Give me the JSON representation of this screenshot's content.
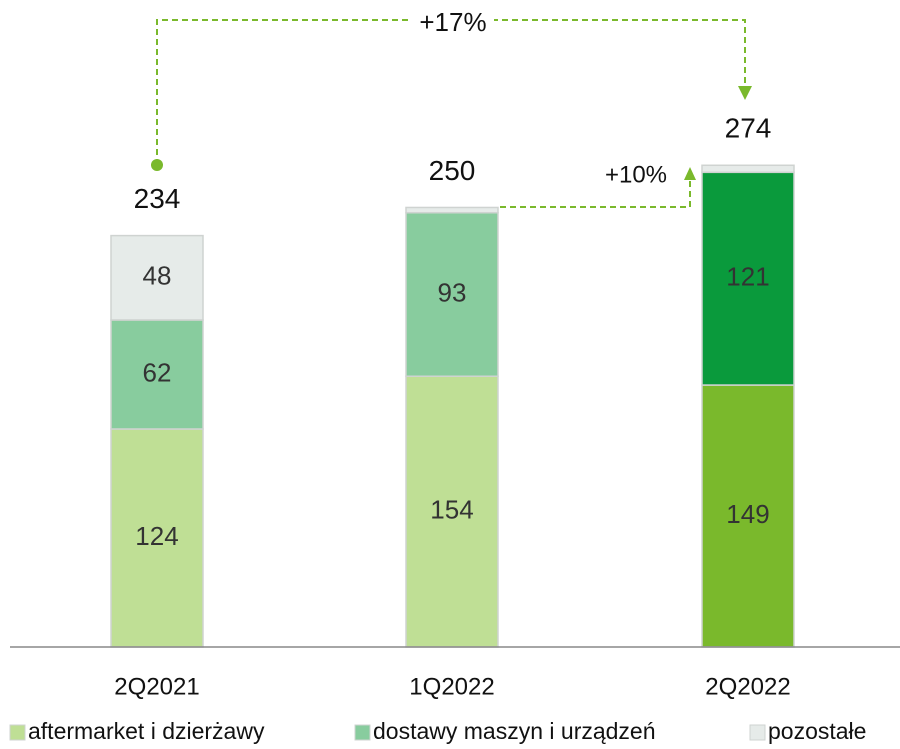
{
  "chart_data": {
    "type": "stacked_bar",
    "categories": [
      "2Q2021",
      "1Q2022",
      "2Q2022"
    ],
    "series": [
      {
        "name": "aftermarket i dzierżawy",
        "color": "#bfdf95",
        "colors": [
          "#bfdf95",
          "#bfdf95",
          "#7ab92c"
        ],
        "values": [
          124,
          154,
          149
        ]
      },
      {
        "name": "dostawy maszyn i urządzeń",
        "color": "#88cc9e",
        "colors": [
          "#88cc9e",
          "#88cc9e",
          "#0a9a3c"
        ],
        "values": [
          62,
          93,
          121
        ]
      },
      {
        "name": "pozostałe",
        "color": "#e6ebe9",
        "colors": [
          "#e6ebe9",
          "#e6ebe9",
          "#e6ebe9"
        ],
        "values": [
          48,
          3,
          4
        ]
      }
    ],
    "totals": [
      234,
      250,
      274
    ],
    "annotations": [
      "+17%",
      "+10%"
    ],
    "ylim": [
      0,
      368
    ],
    "legend": "bottom"
  }
}
